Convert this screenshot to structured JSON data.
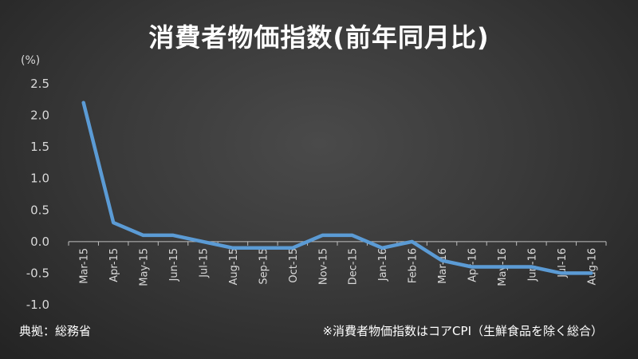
{
  "title": "消費者物価指数(前年同月比)",
  "unit_label": "(%)",
  "source_label": "典拠：総務省",
  "note_label": "※消費者物価指数はコアCPI（生鮮食品を除く総合）",
  "colors": {
    "line": "#5b9bd5",
    "axis": "#bfbfbf",
    "negative_tick": "#c00000",
    "tick": "#d9d9d9"
  },
  "chart_data": {
    "type": "line",
    "title": "消費者物価指数(前年同月比)",
    "ylabel": "(%)",
    "xlabel": "",
    "ylim": [
      -1.0,
      2.5
    ],
    "y_ticks": [
      2.5,
      2.0,
      1.5,
      1.0,
      0.5,
      0.0,
      -0.5,
      -1.0
    ],
    "y_tick_labels": [
      "2.5",
      "2.0",
      "1.5",
      "1.0",
      "0.5",
      "0.0",
      "-0.5",
      "-1.0"
    ],
    "grid": false,
    "legend": "none",
    "categories": [
      "Mar-15",
      "Apr-15",
      "May-15",
      "Jun-15",
      "Jul-15",
      "Aug-15",
      "Sep-15",
      "Oct-15",
      "Nov-15",
      "Dec-15",
      "Jan-16",
      "Feb-16",
      "Mar-16",
      "Apr-16",
      "May-16",
      "Jun-16",
      "Jul-16",
      "Aug-16"
    ],
    "series": [
      {
        "values": [
          2.2,
          0.3,
          0.1,
          0.1,
          0.0,
          -0.1,
          -0.1,
          -0.1,
          0.1,
          0.1,
          -0.1,
          0.0,
          -0.3,
          -0.4,
          -0.4,
          -0.4,
          -0.5,
          -0.5
        ]
      }
    ]
  }
}
